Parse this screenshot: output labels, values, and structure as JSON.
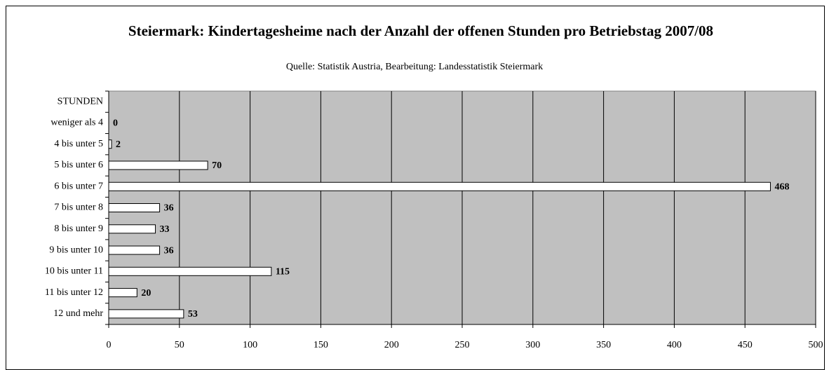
{
  "chart_data": {
    "type": "bar",
    "orientation": "horizontal",
    "title": "Steiermark: Kindertagesheime nach der Anzahl der offenen Stunden pro Betriebstag 2007/08",
    "subtitle": "Quelle: Statistik Austria, Bearbeitung: Landesstatistik Steiermark",
    "categories": [
      "STUNDEN",
      "weniger als 4",
      "4 bis unter 5",
      "5 bis unter 6",
      "6 bis unter 7",
      "7 bis unter 8",
      "8 bis unter 9",
      "9 bis unter 10",
      "10 bis unter 11",
      "11 bis unter 12",
      "12 und mehr"
    ],
    "values": [
      null,
      0,
      2,
      70,
      468,
      36,
      33,
      36,
      115,
      20,
      53
    ],
    "color": "#ffffff",
    "xlim": [
      0,
      500
    ],
    "xticks": [
      0,
      50,
      100,
      150,
      200,
      250,
      300,
      350,
      400,
      450,
      500
    ],
    "grid": true
  }
}
